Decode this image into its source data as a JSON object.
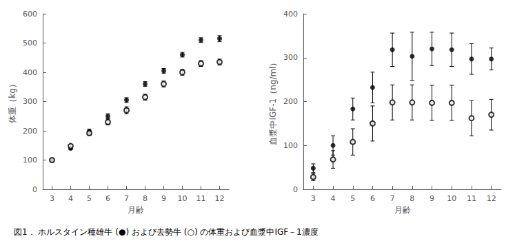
{
  "caption": "図1． ホルスタイン種雄牛 (●) および去勢牛 (○) の体重および血漿中IGF－1濃度",
  "chart_data": [
    {
      "type": "scatter",
      "x": [
        3,
        4,
        5,
        6,
        7,
        8,
        9,
        10,
        11,
        12
      ],
      "xlabel": "月齢",
      "ylabel": "体重（kg）",
      "xlim": [
        2.5,
        12.5
      ],
      "xticks": [
        3,
        4,
        5,
        6,
        7,
        8,
        9,
        10,
        11,
        12
      ],
      "ylim": [
        0,
        600
      ],
      "yticks": [
        0,
        100,
        200,
        300,
        400,
        500,
        600
      ],
      "grid": false,
      "series": [
        {
          "color": "#000000",
          "marker": "circle",
          "values": [
            100,
            140,
            198,
            250,
            305,
            360,
            405,
            460,
            510,
            515
          ],
          "errors": [
            2,
            4,
            8,
            8,
            8,
            8,
            8,
            8,
            8,
            10
          ]
        },
        {
          "color": "#000000",
          "marker": "emptyCircle",
          "values": [
            100,
            148,
            192,
            230,
            270,
            315,
            360,
            400,
            430,
            435
          ],
          "errors": [
            2,
            5,
            8,
            10,
            12,
            10,
            10,
            10,
            10,
            10
          ]
        }
      ]
    },
    {
      "type": "scatter",
      "x": [
        3,
        4,
        5,
        6,
        7,
        8,
        9,
        10,
        11,
        12
      ],
      "xlabel": "月齢",
      "ylabel": "血漿中IGF-1（ng/ml）",
      "xlim": [
        2.5,
        12.5
      ],
      "xticks": [
        3,
        4,
        5,
        6,
        7,
        8,
        9,
        10,
        11,
        12
      ],
      "ylim": [
        0,
        400
      ],
      "yticks": [
        0,
        100,
        200,
        300,
        400
      ],
      "grid": false,
      "series": [
        {
          "color": "#000000",
          "marker": "circle",
          "values": [
            48,
            100,
            183,
            232,
            318,
            303,
            320,
            318,
            297,
            297
          ],
          "errors": [
            10,
            22,
            25,
            35,
            38,
            55,
            38,
            38,
            35,
            25
          ]
        },
        {
          "color": "#000000",
          "marker": "emptyCircle",
          "values": [
            28,
            68,
            108,
            150,
            198,
            198,
            197,
            197,
            162,
            170
          ],
          "errors": [
            8,
            20,
            30,
            40,
            40,
            40,
            40,
            40,
            40,
            35
          ]
        }
      ]
    }
  ]
}
